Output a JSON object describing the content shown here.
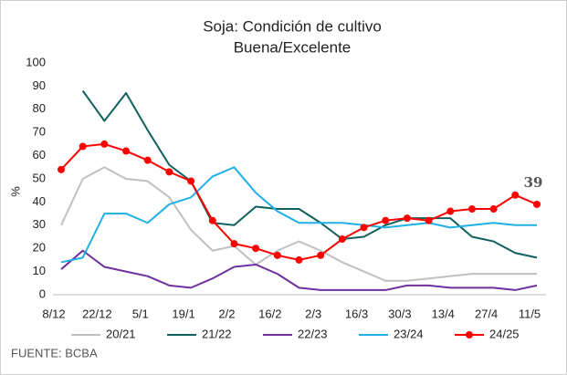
{
  "chart_data": {
    "type": "line",
    "title": "Soja: Condición de cultivo",
    "subtitle": "Buena/Excelente",
    "ylabel": "%",
    "source": "FUENTE: BCBA",
    "categories": [
      "8/12",
      null,
      "22/12",
      null,
      "5/1",
      null,
      "19/1",
      null,
      "2/2",
      null,
      "16/2",
      null,
      "2/3",
      null,
      "16/3",
      null,
      "30/3",
      null,
      "13/4",
      null,
      "27/4",
      null,
      "11/5"
    ],
    "ylim": [
      0,
      100
    ],
    "yticks": [
      0,
      10,
      20,
      30,
      40,
      50,
      60,
      70,
      80,
      90,
      100
    ],
    "grid": false,
    "legend": "bottom",
    "series": [
      {
        "name": "20/21",
        "color": "#c0c0c0",
        "marker": false,
        "values": [
          30,
          50,
          55,
          50,
          49,
          42,
          28,
          19,
          21,
          13,
          19,
          23,
          19,
          14,
          10,
          6,
          6,
          7,
          8,
          9,
          9,
          9,
          9
        ]
      },
      {
        "name": "21/22",
        "color": "#12605e",
        "marker": false,
        "values": [
          null,
          88,
          75,
          87,
          71,
          56,
          49,
          31,
          30,
          38,
          37,
          37,
          31,
          24,
          25,
          30,
          33,
          33,
          33,
          25,
          23,
          18,
          16
        ]
      },
      {
        "name": "22/23",
        "color": "#7030a0",
        "marker": false,
        "values": [
          11,
          19,
          12,
          10,
          8,
          4,
          3,
          7,
          12,
          13,
          9,
          3,
          2,
          2,
          2,
          2,
          4,
          4,
          3,
          3,
          3,
          2,
          4
        ]
      },
      {
        "name": "23/24",
        "color": "#1fb0e6",
        "marker": false,
        "values": [
          14,
          16,
          35,
          35,
          31,
          39,
          42,
          51,
          55,
          44,
          36,
          31,
          31,
          31,
          30,
          29,
          30,
          31,
          29,
          30,
          31,
          30,
          30
        ]
      },
      {
        "name": "24/25",
        "color": "#ff0000",
        "marker": true,
        "values": [
          54,
          64,
          65,
          62,
          58,
          53,
          49,
          32,
          22,
          20,
          17,
          15,
          17,
          24,
          29,
          32,
          33,
          32,
          36,
          37,
          37,
          43,
          39
        ]
      }
    ]
  }
}
